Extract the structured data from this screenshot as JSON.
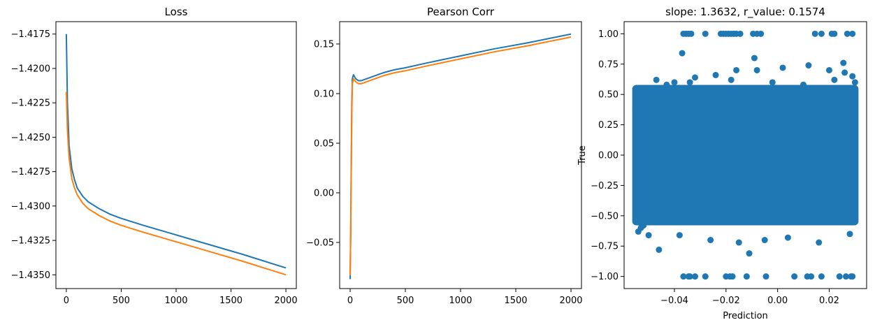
{
  "colors": {
    "series1": "#1f77b4",
    "series2": "#ff7f0e",
    "axis": "#000000",
    "background": "#ffffff"
  },
  "chart_data": [
    {
      "type": "line",
      "title": "Loss",
      "xlabel": "",
      "ylabel": "",
      "xlim": [
        -95,
        2095
      ],
      "ylim": [
        -1.436,
        -1.4166
      ],
      "xticks": [
        0,
        500,
        1000,
        1500,
        2000
      ],
      "xtick_labels": [
        "0",
        "500",
        "1000",
        "1500",
        "2000"
      ],
      "yticks": [
        -1.4175,
        -1.42,
        -1.4225,
        -1.425,
        -1.4275,
        -1.43,
        -1.4325,
        -1.435
      ],
      "ytick_labels": [
        "−1.4175",
        "−1.4200",
        "−1.4225",
        "−1.4250",
        "−1.4275",
        "−1.4300",
        "−1.4325",
        "−1.4350"
      ],
      "grid": false,
      "series": [
        {
          "color": "#1f77b4",
          "x": [
            0,
            10,
            25,
            50,
            75,
            100,
            150,
            200,
            300,
            400,
            500,
            700,
            1000,
            1300,
            1600,
            2000
          ],
          "y": [
            -1.4175,
            -1.4225,
            -1.4256,
            -1.4273,
            -1.4281,
            -1.4287,
            -1.4293,
            -1.4297,
            -1.4302,
            -1.4306,
            -1.4309,
            -1.4314,
            -1.4321,
            -1.4328,
            -1.4335,
            -1.4345
          ]
        },
        {
          "color": "#ff7f0e",
          "x": [
            0,
            10,
            25,
            50,
            75,
            100,
            150,
            200,
            300,
            400,
            500,
            700,
            1000,
            1300,
            1600,
            2000
          ],
          "y": [
            -1.4217,
            -1.4245,
            -1.4265,
            -1.428,
            -1.4287,
            -1.4292,
            -1.4298,
            -1.4302,
            -1.4307,
            -1.4311,
            -1.4314,
            -1.4319,
            -1.4326,
            -1.4333,
            -1.434,
            -1.435
          ]
        }
      ]
    },
    {
      "type": "line",
      "title": "Pearson Corr",
      "xlabel": "",
      "ylabel": "",
      "xlim": [
        -95,
        2095
      ],
      "ylim": [
        -0.0965,
        0.1725
      ],
      "xticks": [
        0,
        500,
        1000,
        1500,
        2000
      ],
      "xtick_labels": [
        "0",
        "500",
        "1000",
        "1500",
        "2000"
      ],
      "yticks": [
        -0.05,
        0.0,
        0.05,
        0.1,
        0.15
      ],
      "ytick_labels": [
        "−0.05",
        "0.00",
        "0.05",
        "0.10",
        "0.15"
      ],
      "grid": false,
      "series": [
        {
          "color": "#1f77b4",
          "x": [
            0,
            5,
            10,
            15,
            20,
            30,
            50,
            75,
            100,
            150,
            200,
            300,
            400,
            500,
            700,
            1000,
            1300,
            1600,
            2000
          ],
          "y": [
            -0.087,
            -0.04,
            0.03,
            0.09,
            0.115,
            0.119,
            0.115,
            0.113,
            0.113,
            0.115,
            0.117,
            0.121,
            0.124,
            0.126,
            0.131,
            0.138,
            0.145,
            0.151,
            0.16
          ]
        },
        {
          "color": "#ff7f0e",
          "x": [
            0,
            5,
            10,
            15,
            20,
            30,
            50,
            75,
            100,
            150,
            200,
            300,
            400,
            500,
            700,
            1000,
            1300,
            1600,
            2000
          ],
          "y": [
            -0.083,
            -0.04,
            0.02,
            0.08,
            0.11,
            0.115,
            0.112,
            0.11,
            0.11,
            0.112,
            0.114,
            0.118,
            0.121,
            0.123,
            0.128,
            0.135,
            0.142,
            0.148,
            0.157
          ]
        }
      ]
    },
    {
      "type": "scatter",
      "title": "slope: 1.3632, r_value: 0.1574",
      "xlabel": "Prediction",
      "ylabel": "True",
      "xlim": [
        -0.0595,
        0.0345
      ],
      "ylim": [
        -1.1,
        1.1
      ],
      "xticks": [
        -0.04,
        -0.02,
        0.0,
        0.02
      ],
      "xtick_labels": [
        "−0.04",
        "−0.02",
        "0.00",
        "0.02"
      ],
      "yticks": [
        -1.0,
        -0.75,
        -0.5,
        -0.25,
        0.0,
        0.25,
        0.5,
        0.75,
        1.0
      ],
      "ytick_labels": [
        "−1.00",
        "−0.75",
        "−0.50",
        "−0.25",
        "0.00",
        "0.25",
        "0.50",
        "0.75",
        "1.00"
      ],
      "grid": false,
      "dense_region": {
        "x": [
          -0.055,
          0.03
        ],
        "y": [
          -0.55,
          0.55
        ]
      },
      "series": [
        {
          "color": "#1f77b4",
          "x": [
            -0.0365,
            -0.0355,
            -0.0345,
            -0.0335,
            -0.028,
            -0.022,
            -0.021,
            -0.02,
            -0.019,
            -0.018,
            -0.017,
            -0.016,
            -0.0145,
            -0.0095,
            -0.008,
            -0.0065,
            0.0145,
            0.017,
            0.021,
            0.022,
            0.027,
            0.029,
            -0.0365,
            -0.0345,
            -0.034,
            -0.032,
            -0.028,
            -0.02,
            -0.0185,
            -0.0175,
            -0.012,
            -0.0045,
            0.0065,
            0.0115,
            0.013,
            0.017,
            0.024,
            0.0265,
            0.0285,
            0.029,
            -0.037,
            -0.009,
            0.0255,
            -0.011,
            -0.054,
            -0.05,
            -0.046,
            -0.055,
            -0.043,
            -0.052,
            -0.054,
            -0.047,
            -0.04,
            -0.032,
            -0.024,
            -0.016,
            -0.008,
            0.002,
            0.012,
            0.02,
            0.026,
            0.029,
            -0.053,
            -0.038,
            -0.026,
            -0.015,
            -0.005,
            0.004,
            0.016,
            0.028,
            -0.051,
            -0.045,
            -0.034,
            -0.018,
            -0.002,
            0.01,
            0.022,
            0.03
          ],
          "y": [
            1.0,
            1.0,
            1.0,
            1.0,
            1.0,
            1.0,
            1.0,
            1.0,
            1.0,
            1.0,
            1.0,
            1.0,
            1.0,
            1.0,
            1.0,
            1.0,
            1.0,
            1.0,
            1.0,
            1.0,
            1.0,
            1.0,
            -1.0,
            -1.0,
            -1.0,
            -1.0,
            -1.0,
            -1.0,
            -1.0,
            -1.0,
            -1.0,
            -1.0,
            -1.0,
            -1.0,
            -1.0,
            -1.0,
            -1.0,
            -1.0,
            -1.0,
            -1.0,
            0.84,
            0.8,
            0.76,
            -0.81,
            -0.63,
            -0.66,
            -0.78,
            0.42,
            0.58,
            -0.58,
            0.4,
            0.62,
            0.6,
            0.64,
            0.66,
            0.7,
            0.7,
            0.72,
            0.74,
            0.7,
            0.68,
            0.65,
            -0.6,
            -0.66,
            -0.7,
            -0.72,
            -0.7,
            -0.68,
            -0.72,
            -0.65,
            0.5,
            0.55,
            0.6,
            0.62,
            0.6,
            0.58,
            0.62,
            0.6
          ]
        }
      ]
    }
  ]
}
